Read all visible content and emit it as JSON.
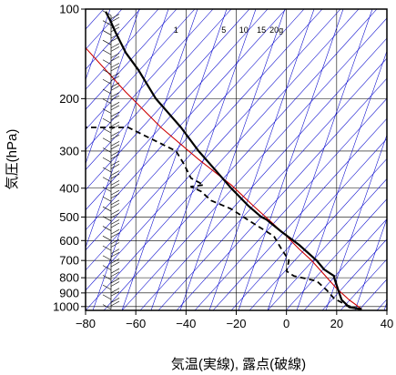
{
  "colors": {
    "background": "#ffffff",
    "frame": "#000000",
    "grid": "#000000",
    "dry_adiabat": "#0000cc",
    "mixing_ratio": "#0000cc",
    "parcel_curve": "#cc0000",
    "temperature": "#000000",
    "dewpoint": "#000000",
    "wind_barb": "#000000"
  },
  "chart_data": {
    "type": "line",
    "subtype": "skew-T log-P thermodynamic diagram",
    "title": "",
    "xlabel": "気温(実線), 露点(破線)",
    "ylabel": "気圧(hPa)",
    "xlim": [
      -80,
      40
    ],
    "ylim": [
      1030,
      100
    ],
    "y_scale": "log",
    "y_inverted": true,
    "grid": true,
    "legend": "none",
    "x_ticks": [
      -80,
      -60,
      -40,
      -20,
      0,
      20,
      40
    ],
    "x_tick_labels": [
      "−80",
      "−60",
      "−40",
      "−20",
      "0",
      "20",
      "40"
    ],
    "y_ticks": [
      100,
      200,
      300,
      400,
      500,
      600,
      700,
      800,
      900,
      1000
    ],
    "y_tick_labels": [
      "100",
      "200",
      "300",
      "400",
      "500",
      "600",
      "700",
      "800",
      "900",
      "1000"
    ],
    "mixing_ratio_labels": [
      {
        "x": -44,
        "y": 120,
        "text": "1"
      },
      {
        "x": -25,
        "y": 120,
        "text": "5"
      },
      {
        "x": -17,
        "y": 120,
        "text": "10"
      },
      {
        "x": -10,
        "y": 120,
        "text": "15"
      },
      {
        "x": -4,
        "y": 120,
        "text": "20g"
      }
    ],
    "series": [
      {
        "key": "parcel",
        "style": "solid-red",
        "points": [
          {
            "x": 30,
            "y": 1020
          },
          {
            "x": 25,
            "y": 950
          },
          {
            "x": 20,
            "y": 870
          },
          {
            "x": 15,
            "y": 780
          },
          {
            "x": 10,
            "y": 700
          },
          {
            "x": 5,
            "y": 640
          },
          {
            "x": 0,
            "y": 580
          },
          {
            "x": -6,
            "y": 520
          },
          {
            "x": -13,
            "y": 460
          },
          {
            "x": -22,
            "y": 390
          },
          {
            "x": -35,
            "y": 320
          },
          {
            "x": -50,
            "y": 250
          },
          {
            "x": -64,
            "y": 190
          },
          {
            "x": -80,
            "y": 135
          }
        ]
      },
      {
        "key": "temperature",
        "style": "solid-black",
        "points": [
          {
            "x": 30,
            "y": 1020
          },
          {
            "x": 25,
            "y": 1005
          },
          {
            "x": 22,
            "y": 950
          },
          {
            "x": 21,
            "y": 900
          },
          {
            "x": 19,
            "y": 800
          },
          {
            "x": 19,
            "y": 790
          },
          {
            "x": 15,
            "y": 750
          },
          {
            "x": 12,
            "y": 700
          },
          {
            "x": 5,
            "y": 620
          },
          {
            "x": -2,
            "y": 560
          },
          {
            "x": -8,
            "y": 510
          },
          {
            "x": -10,
            "y": 500
          },
          {
            "x": -15,
            "y": 460
          },
          {
            "x": -22,
            "y": 400
          },
          {
            "x": -28,
            "y": 350
          },
          {
            "x": -35,
            "y": 300
          },
          {
            "x": -42,
            "y": 250
          },
          {
            "x": -52,
            "y": 200
          },
          {
            "x": -59,
            "y": 160
          },
          {
            "x": -64,
            "y": 140
          },
          {
            "x": -68,
            "y": 120
          },
          {
            "x": -70,
            "y": 110
          },
          {
            "x": -72,
            "y": 102
          }
        ]
      },
      {
        "key": "dewpoint",
        "style": "dashed-black",
        "points": [
          {
            "x": 29,
            "y": 1020
          },
          {
            "x": 24,
            "y": 990
          },
          {
            "x": 19,
            "y": 940
          },
          {
            "x": 16,
            "y": 880
          },
          {
            "x": 12,
            "y": 820
          },
          {
            "x": 3,
            "y": 790
          },
          {
            "x": 0,
            "y": 760
          },
          {
            "x": 1,
            "y": 700
          },
          {
            "x": -2,
            "y": 640
          },
          {
            "x": -5,
            "y": 580
          },
          {
            "x": -14,
            "y": 520
          },
          {
            "x": -22,
            "y": 470
          },
          {
            "x": -30,
            "y": 440
          },
          {
            "x": -34,
            "y": 410
          },
          {
            "x": -38,
            "y": 395
          },
          {
            "x": -33,
            "y": 390
          },
          {
            "x": -38,
            "y": 370
          },
          {
            "x": -41,
            "y": 330
          },
          {
            "x": -44,
            "y": 300
          },
          {
            "x": -55,
            "y": 270
          },
          {
            "x": -63,
            "y": 250
          },
          {
            "x": -74,
            "y": 250
          },
          {
            "x": -80,
            "y": 250
          }
        ]
      }
    ]
  }
}
